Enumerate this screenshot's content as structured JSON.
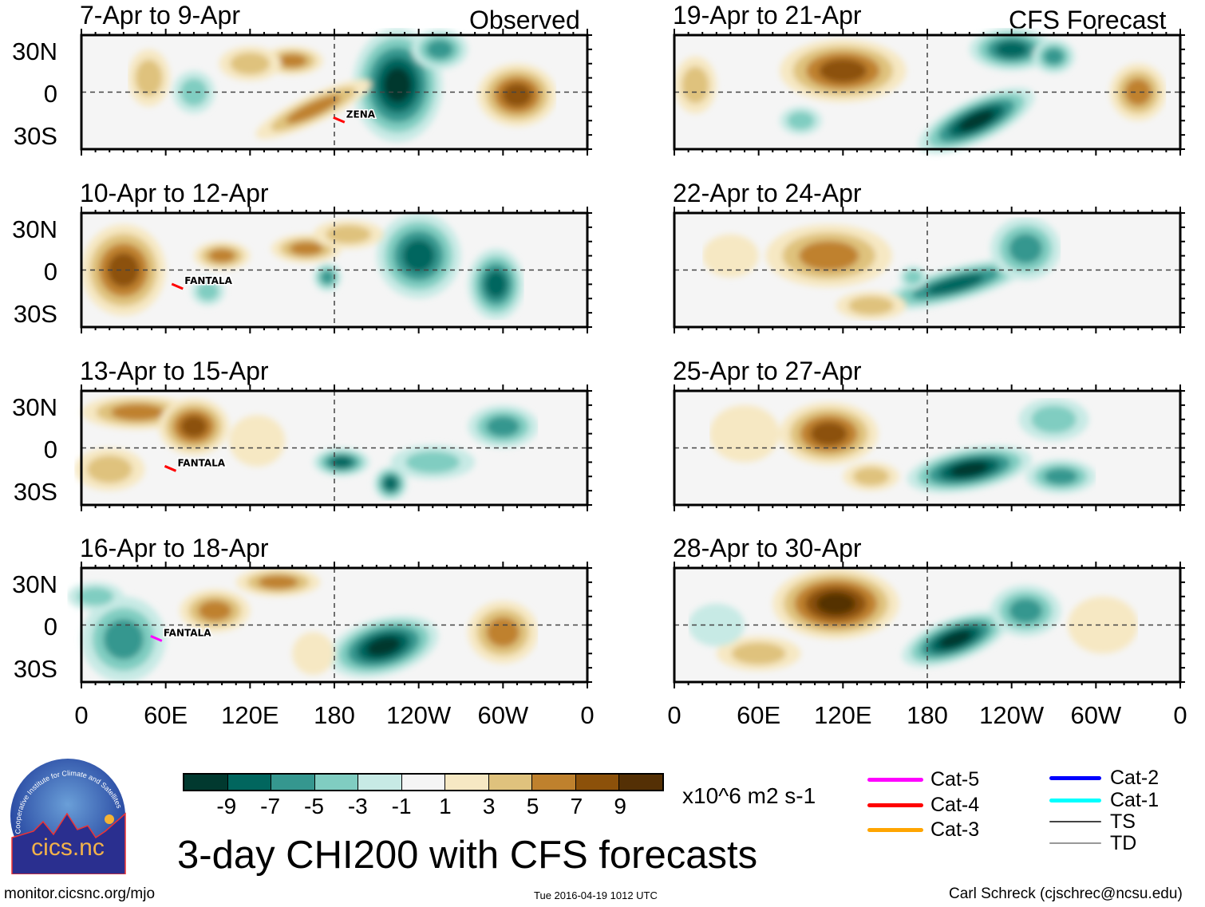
{
  "panels_left_header": "Observed",
  "panels_right_header": "CFS Forecast",
  "panels": [
    {
      "title": "7-Apr to 9-Apr",
      "storms": [
        {
          "name": "ZENA"
        }
      ]
    },
    {
      "title": "10-Apr to 12-Apr",
      "storms": [
        {
          "name": "FANTALA"
        }
      ]
    },
    {
      "title": "13-Apr to 15-Apr",
      "storms": [
        {
          "name": "FANTALA"
        }
      ]
    },
    {
      "title": "16-Apr to 18-Apr",
      "storms": [
        {
          "name": "FANTALA"
        }
      ]
    },
    {
      "title": "19-Apr to 21-Apr",
      "storms": []
    },
    {
      "title": "22-Apr to 24-Apr",
      "storms": []
    },
    {
      "title": "25-Apr to 27-Apr",
      "storms": []
    },
    {
      "title": "28-Apr to 30-Apr",
      "storms": []
    }
  ],
  "lat_labels": [
    "30N",
    "0",
    "30S"
  ],
  "lon_labels": [
    "0",
    "60E",
    "120E",
    "180",
    "120W",
    "60W",
    "0"
  ],
  "colorbar": {
    "labels": [
      "-9",
      "-7",
      "-5",
      "-3",
      "-1",
      "1",
      "3",
      "5",
      "7",
      "9"
    ],
    "colors": [
      "#01392f",
      "#01665e",
      "#35978f",
      "#80cdc1",
      "#c7eae5",
      "#f5f5f5",
      "#f6e8c3",
      "#dfc27d",
      "#bf812d",
      "#8c510a",
      "#543005"
    ],
    "units": "x10^6 m2 s-1"
  },
  "title": "3-day CHI200 with CFS forecasts",
  "track_legend": [
    {
      "label": "Cat-5",
      "color": "#ff00ff"
    },
    {
      "label": "Cat-4",
      "color": "#ff0000"
    },
    {
      "label": "Cat-3",
      "color": "#ffa500"
    },
    {
      "label": "Cat-2",
      "color": "#0000ff"
    },
    {
      "label": "Cat-1",
      "color": "#00ffff"
    },
    {
      "label": "TS",
      "color": "#444444"
    },
    {
      "label": "TD",
      "color": "#999999"
    }
  ],
  "logo": {
    "text": "cics.nc",
    "ring_text": "Cooperative Institute for Climate and Satellites"
  },
  "footer": {
    "left": "monitor.cicsnc.org/mjo",
    "center": "Tue 2016-04-19 1012 UTC",
    "right": "Carl Schreck (cjschrec@ncsu.edu)"
  }
}
